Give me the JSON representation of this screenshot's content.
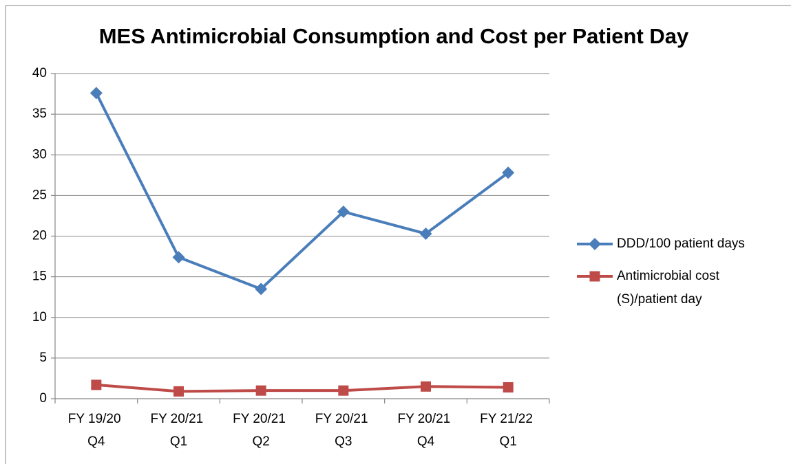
{
  "chart_data": {
    "type": "line",
    "title": "MES Antimicrobial Consumption and Cost per Patient Day",
    "categories": [
      "FY 19/20 Q4",
      "FY 20/21 Q1",
      "FY 20/21 Q2",
      "FY 20/21 Q3",
      "FY 20/21 Q4",
      "FY 21/22 Q1"
    ],
    "series": [
      {
        "name": "DDD/100 patient days",
        "color": "#4a7ebb",
        "marker": "diamond",
        "values": [
          37.6,
          17.4,
          13.5,
          23.0,
          20.3,
          27.8
        ]
      },
      {
        "name": "Antimicrobial cost (S)/patient day",
        "color": "#be4b48",
        "marker": "square",
        "values": [
          1.7,
          0.9,
          1.0,
          1.0,
          1.5,
          1.4
        ]
      }
    ],
    "ylim": [
      0,
      40
    ],
    "yticks": [
      0,
      5,
      10,
      15,
      20,
      25,
      30,
      35,
      40
    ],
    "grid": true,
    "legend": "right"
  }
}
